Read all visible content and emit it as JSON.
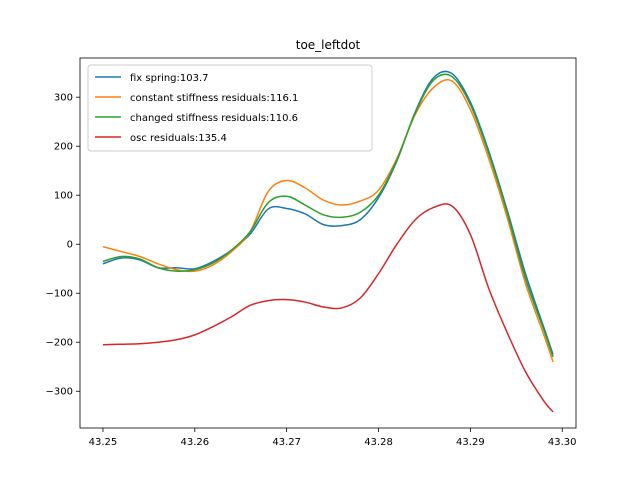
{
  "chart_data": {
    "type": "line",
    "title": "toe_leftdot",
    "xlabel": "",
    "ylabel": "",
    "xlim": [
      43.2475,
      43.3015
    ],
    "ylim": [
      -375,
      380
    ],
    "xticks": [
      43.25,
      43.26,
      43.27,
      43.28,
      43.29,
      43.3
    ],
    "xtick_labels": [
      "43.25",
      "43.26",
      "43.27",
      "43.28",
      "43.29",
      "43.30"
    ],
    "yticks": [
      -300,
      -200,
      -100,
      0,
      100,
      200,
      300
    ],
    "ytick_labels": [
      "−300",
      "−200",
      "−100",
      "0",
      "100",
      "200",
      "300"
    ],
    "grid": false,
    "legend_position": "top-left",
    "x": [
      43.25,
      43.252,
      43.254,
      43.256,
      43.258,
      43.26,
      43.262,
      43.264,
      43.266,
      43.268,
      43.27,
      43.272,
      43.274,
      43.276,
      43.278,
      43.28,
      43.282,
      43.284,
      43.286,
      43.288,
      43.29,
      43.292,
      43.294,
      43.296,
      43.298,
      43.299
    ],
    "series": [
      {
        "name": "fix spring:103.7",
        "color": "#1f77b4",
        "values": [
          -40,
          -28,
          -32,
          -48,
          -48,
          -50,
          -35,
          -12,
          20,
          72,
          73,
          62,
          40,
          38,
          50,
          95,
          170,
          270,
          340,
          348,
          290,
          190,
          70,
          -60,
          -170,
          -225
        ]
      },
      {
        "name": "constant stiffness residuals:116.1",
        "color": "#ff7f0e",
        "values": [
          -5,
          -15,
          -25,
          -40,
          -52,
          -55,
          -42,
          -15,
          25,
          108,
          130,
          115,
          90,
          80,
          88,
          110,
          175,
          265,
          320,
          333,
          275,
          175,
          55,
          -80,
          -185,
          -240
        ]
      },
      {
        "name": "changed stiffness residuals:110.6",
        "color": "#2ca02c",
        "values": [
          -35,
          -25,
          -30,
          -48,
          -55,
          -52,
          -38,
          -12,
          25,
          85,
          98,
          80,
          60,
          55,
          65,
          100,
          172,
          268,
          335,
          342,
          285,
          185,
          65,
          -70,
          -175,
          -230
        ]
      },
      {
        "name": "osc residuals:135.4",
        "color": "#d62728",
        "values": [
          -205,
          -204,
          -203,
          -200,
          -195,
          -185,
          -168,
          -148,
          -125,
          -115,
          -113,
          -118,
          -128,
          -130,
          -110,
          -60,
          0,
          50,
          75,
          78,
          20,
          -90,
          -180,
          -260,
          -320,
          -342
        ]
      }
    ]
  }
}
